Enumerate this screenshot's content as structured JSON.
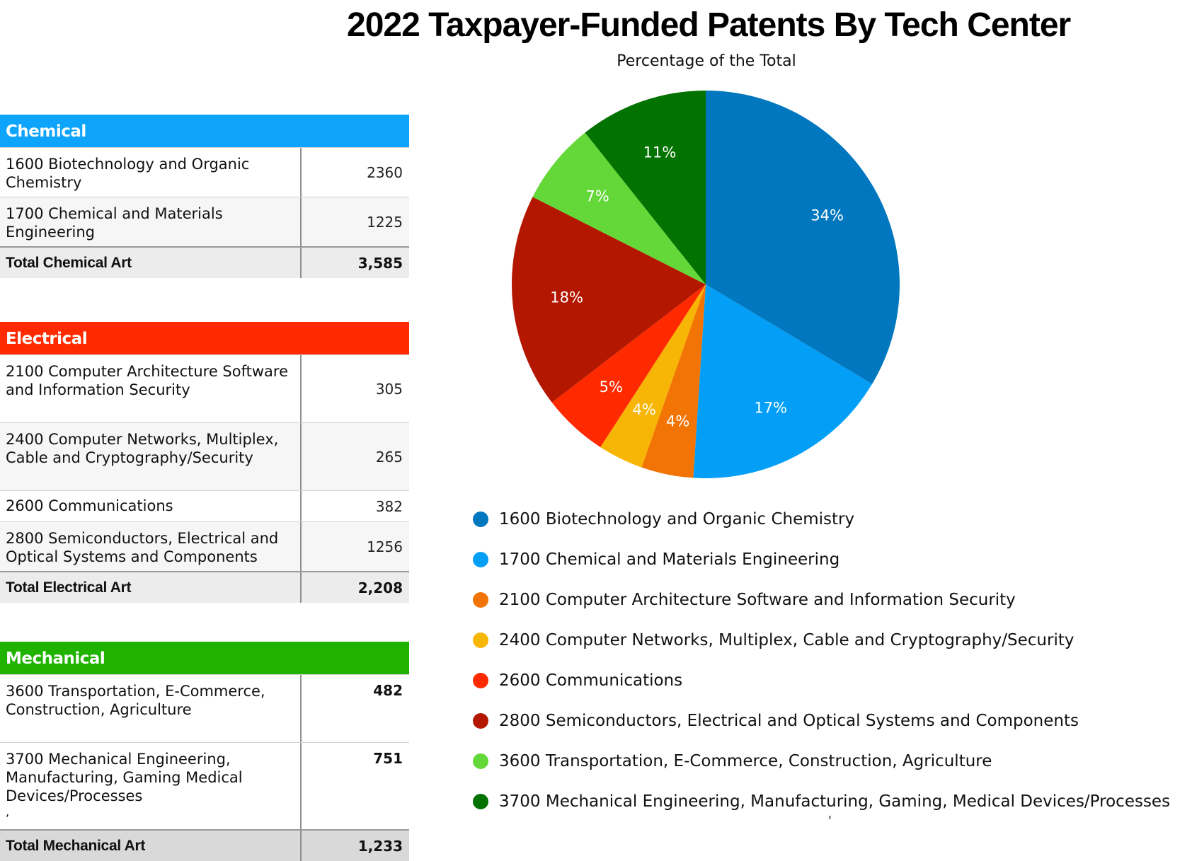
{
  "title": "2022 Taxpayer-Funded Patents By Tech Center",
  "subtitle": "Percentage of the Total",
  "tables": {
    "chemical": {
      "header": "Chemical",
      "color": "#0ea4fb",
      "rows": [
        {
          "name": "1600 Biotechnology and Organic Chemistry",
          "value": "2360"
        },
        {
          "name": "1700 Chemical and Materials Engineering",
          "value": "1225"
        }
      ],
      "total_label": "Total Chemical Art",
      "total_value": "3,585"
    },
    "electrical": {
      "header": "Electrical",
      "color": "#ff2a00",
      "rows": [
        {
          "name": "2100 Computer Architecture Software and Information Security",
          "value": "305"
        },
        {
          "name": "2400 Computer Networks, Multiplex, Cable and Cryptography/Security",
          "value": "265"
        },
        {
          "name": "2600 Communications",
          "value": "382"
        },
        {
          "name": "2800 Semiconductors, Electrical and Optical Systems and Components",
          "value": "1256"
        }
      ],
      "total_label": "Total Electrical Art",
      "total_value": "2,208"
    },
    "mechanical": {
      "header": "Mechanical",
      "color": "#1fb300",
      "rows": [
        {
          "name": "3600 Transportation, E-Commerce, Construction, Agriculture",
          "value": "482"
        },
        {
          "name": "3700 Mechanical Engineering, Manufacturing, Gaming Medical Devices/Processes",
          "value": "751",
          "note": ","
        }
      ],
      "total_label": "Total Mechanical Art",
      "total_value": "1,233"
    }
  },
  "stray_mark": "'",
  "chart_data": {
    "type": "pie",
    "title": "2022 Taxpayer-Funded Patents By Tech Center",
    "subtitle": "Percentage of the Total",
    "slices": [
      {
        "label": "1600 Biotechnology and Organic Chemistry",
        "value": 2360,
        "percent_label": "34%",
        "color": "#0077be"
      },
      {
        "label": "1700 Chemical and Materials Engineering",
        "value": 1225,
        "percent_label": "17%",
        "color": "#039ff7"
      },
      {
        "label": "2100 Computer Architecture Software and Information Security",
        "value": 305,
        "percent_label": "4%",
        "color": "#f27405"
      },
      {
        "label": "2400 Computer Networks, Multiplex, Cable and Cryptography/Security",
        "value": 265,
        "percent_label": "4%",
        "color": "#f7b605"
      },
      {
        "label": "2600 Communications",
        "value": 382,
        "percent_label": "5%",
        "color": "#ff2a00"
      },
      {
        "label": "2800 Semiconductors, Electrical and Optical Systems and Components",
        "value": 1256,
        "percent_label": "18%",
        "color": "#b31700"
      },
      {
        "label": "3600 Transportation, E-Commerce, Construction, Agriculture",
        "value": 482,
        "percent_label": "7%",
        "color": "#63d838"
      },
      {
        "label": "3700 Mechanical Engineering, Manufacturing, Gaming, Medical Devices/Processes",
        "value": 751,
        "percent_label": "11%",
        "color": "#027200"
      }
    ],
    "start_angle": "12 o'clock",
    "direction": "clockwise",
    "legend_position": "bottom"
  }
}
